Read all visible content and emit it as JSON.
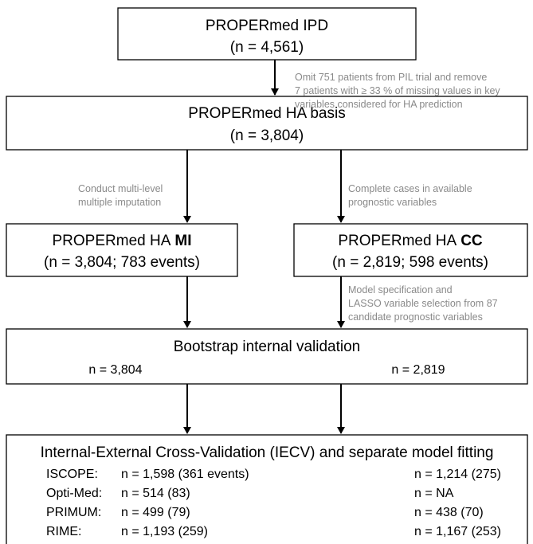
{
  "boxes": {
    "ipd": {
      "title": "PROPERmed IPD",
      "n": "(n = 4,561)"
    },
    "basis": {
      "title": "PROPERmed HA basis",
      "n": "(n = 3,804)"
    },
    "mi": {
      "title": "PROPERmed HA",
      "emphasis": "MI",
      "n": "(n = 3,804; 783 events)"
    },
    "cc": {
      "title": "PROPERmed HA",
      "emphasis": "CC",
      "n": "(n = 2,819; 598 events)"
    },
    "bootstrap": {
      "title": "Bootstrap internal validation",
      "left": "n = 3,804",
      "right": "n = 2,819"
    },
    "iecv": {
      "title": "Internal-External Cross-Validation (IECV) and separate model fitting",
      "rows": [
        [
          "ISCOPE:",
          "n = 1,598 (361 events)",
          "n = 1,214 (275)"
        ],
        [
          "Opti-Med:",
          "n = 514 (83)",
          "n = NA"
        ],
        [
          "PRIMUM:",
          "n = 499 (79)",
          "n = 438 (70)"
        ],
        [
          "RIME:",
          "n = 1,193 (259)",
          "n = 1,167 (253)"
        ]
      ]
    }
  },
  "notes": {
    "omit": [
      "Omit 751 patients from PIL trial and remove",
      "7 patients with ≥ 33 % of missing values in key",
      "variables considered for HA prediction"
    ],
    "impute": [
      "Conduct multi-level",
      "multiple imputation"
    ],
    "complete": [
      "Complete cases in available",
      "prognostic variables"
    ],
    "lasso": [
      "Model specification and",
      "LASSO variable selection from 87",
      "candidate prognostic variables"
    ]
  }
}
